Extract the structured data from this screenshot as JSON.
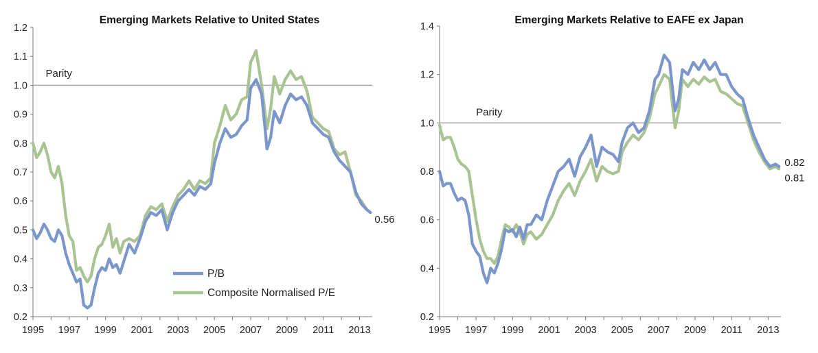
{
  "colors": {
    "pb": "#7b96cb",
    "pe": "#a9c393",
    "parity": "#a8a8a8",
    "axis": "#777777"
  },
  "legend": {
    "pb_label": "P/B",
    "pe_label": "Composite Normalised P/E"
  },
  "chart_data": [
    {
      "type": "line",
      "title": "Emerging Markets Relative to United States",
      "xlabel": "",
      "ylabel": "",
      "xlim": [
        1995,
        2013.7
      ],
      "ylim": [
        0.2,
        1.2
      ],
      "yticks": [
        "0.2",
        "0.3",
        "0.4",
        "0.5",
        "0.6",
        "0.7",
        "0.8",
        "0.9",
        "1.0",
        "1.1",
        "1.2"
      ],
      "xticks": [
        "1995",
        "1997",
        "1999",
        "2001",
        "2003",
        "2005",
        "2007",
        "2009",
        "2011",
        "2013"
      ],
      "reference_line": {
        "y": 1.0,
        "label": "Parity",
        "label_x": 1995.7,
        "label_y": 1.02
      },
      "legend_position": "bottom-center",
      "end_labels": [
        {
          "text": "0.56",
          "series": "P/B"
        }
      ],
      "series": [
        {
          "name": "P/B",
          "x": [
            1995.0,
            1995.2,
            1995.4,
            1995.6,
            1995.8,
            1996.0,
            1996.2,
            1996.4,
            1996.6,
            1996.8,
            1997.0,
            1997.2,
            1997.4,
            1997.6,
            1997.8,
            1998.0,
            1998.2,
            1998.4,
            1998.6,
            1998.8,
            1999.0,
            1999.2,
            1999.4,
            1999.6,
            1999.8,
            2000.0,
            2000.3,
            2000.6,
            2000.9,
            2001.2,
            2001.5,
            2001.8,
            2002.1,
            2002.4,
            2002.7,
            2003.0,
            2003.3,
            2003.6,
            2003.9,
            2004.2,
            2004.5,
            2004.8,
            2005.0,
            2005.3,
            2005.6,
            2005.9,
            2006.2,
            2006.5,
            2006.8,
            2007.0,
            2007.3,
            2007.6,
            2007.9,
            2008.1,
            2008.3,
            2008.6,
            2008.9,
            2009.2,
            2009.5,
            2009.8,
            2010.1,
            2010.4,
            2010.7,
            2011.0,
            2011.3,
            2011.6,
            2011.9,
            2012.2,
            2012.5,
            2012.8,
            2013.1,
            2013.4,
            2013.6
          ],
          "y": [
            0.5,
            0.47,
            0.49,
            0.52,
            0.5,
            0.47,
            0.46,
            0.5,
            0.48,
            0.42,
            0.38,
            0.35,
            0.32,
            0.33,
            0.24,
            0.23,
            0.24,
            0.3,
            0.35,
            0.37,
            0.36,
            0.4,
            0.37,
            0.38,
            0.35,
            0.39,
            0.45,
            0.42,
            0.47,
            0.53,
            0.56,
            0.55,
            0.57,
            0.5,
            0.56,
            0.6,
            0.62,
            0.64,
            0.62,
            0.65,
            0.64,
            0.66,
            0.73,
            0.8,
            0.85,
            0.82,
            0.83,
            0.86,
            0.88,
            0.99,
            1.02,
            0.97,
            0.78,
            0.82,
            0.91,
            0.87,
            0.93,
            0.97,
            0.95,
            0.96,
            0.93,
            0.87,
            0.85,
            0.83,
            0.82,
            0.77,
            0.74,
            0.72,
            0.7,
            0.63,
            0.59,
            0.57,
            0.56
          ]
        },
        {
          "name": "Composite Normalised P/E",
          "x": [
            1995.0,
            1995.2,
            1995.4,
            1995.6,
            1995.8,
            1996.0,
            1996.2,
            1996.4,
            1996.6,
            1996.8,
            1997.0,
            1997.2,
            1997.4,
            1997.6,
            1997.8,
            1998.0,
            1998.2,
            1998.4,
            1998.6,
            1998.8,
            1999.0,
            1999.2,
            1999.4,
            1999.6,
            1999.8,
            2000.0,
            2000.3,
            2000.6,
            2000.9,
            2001.2,
            2001.5,
            2001.8,
            2002.1,
            2002.4,
            2002.7,
            2003.0,
            2003.3,
            2003.6,
            2003.9,
            2004.2,
            2004.5,
            2004.8,
            2005.0,
            2005.3,
            2005.6,
            2005.9,
            2006.2,
            2006.5,
            2006.8,
            2007.0,
            2007.3,
            2007.6,
            2007.9,
            2008.1,
            2008.3,
            2008.6,
            2008.9,
            2009.2,
            2009.5,
            2009.8,
            2010.1,
            2010.4,
            2010.7,
            2011.0,
            2011.3,
            2011.6,
            2011.9,
            2012.2,
            2012.5,
            2012.8,
            2013.1,
            2013.4,
            2013.6
          ],
          "y": [
            0.8,
            0.75,
            0.77,
            0.8,
            0.76,
            0.7,
            0.68,
            0.72,
            0.66,
            0.55,
            0.48,
            0.46,
            0.36,
            0.37,
            0.34,
            0.32,
            0.34,
            0.4,
            0.44,
            0.45,
            0.48,
            0.52,
            0.44,
            0.47,
            0.42,
            0.46,
            0.47,
            0.46,
            0.48,
            0.55,
            0.58,
            0.57,
            0.59,
            0.53,
            0.58,
            0.62,
            0.64,
            0.67,
            0.64,
            0.67,
            0.66,
            0.68,
            0.8,
            0.86,
            0.93,
            0.88,
            0.9,
            0.95,
            0.96,
            1.08,
            1.12,
            1.0,
            0.85,
            0.92,
            1.03,
            0.97,
            1.02,
            1.05,
            1.02,
            1.03,
            0.98,
            0.89,
            0.87,
            0.85,
            0.84,
            0.78,
            0.76,
            0.77,
            0.7,
            0.62,
            0.6,
            0.57,
            0.56
          ]
        }
      ]
    },
    {
      "type": "line",
      "title": "Emerging Markets Relative to EAFE ex Japan",
      "xlabel": "",
      "ylabel": "",
      "xlim": [
        1995,
        2013.7
      ],
      "ylim": [
        0.2,
        1.4
      ],
      "yticks": [
        "0.2",
        "0.4",
        "0.6",
        "0.8",
        "1.0",
        "1.2",
        "1.4"
      ],
      "xticks": [
        "1995",
        "1997",
        "1999",
        "2001",
        "2003",
        "2005",
        "2007",
        "2009",
        "2011",
        "2013"
      ],
      "reference_line": {
        "y": 1.0,
        "label": "Parity",
        "label_x": 1997.0,
        "label_y": 1.02
      },
      "legend_position": "none",
      "end_labels": [
        {
          "text": "0.82",
          "series": "P/B"
        },
        {
          "text": "0.81",
          "series": "Composite Normalised P/E"
        }
      ],
      "series": [
        {
          "name": "P/B",
          "x": [
            1995.0,
            1995.2,
            1995.4,
            1995.6,
            1995.8,
            1996.0,
            1996.2,
            1996.4,
            1996.6,
            1996.8,
            1997.0,
            1997.2,
            1997.4,
            1997.6,
            1997.8,
            1998.0,
            1998.2,
            1998.4,
            1998.6,
            1998.8,
            1999.0,
            1999.2,
            1999.4,
            1999.6,
            1999.8,
            2000.0,
            2000.3,
            2000.6,
            2000.9,
            2001.2,
            2001.5,
            2001.8,
            2002.1,
            2002.4,
            2002.7,
            2003.0,
            2003.3,
            2003.6,
            2003.9,
            2004.2,
            2004.5,
            2004.8,
            2005.0,
            2005.3,
            2005.6,
            2005.9,
            2006.2,
            2006.5,
            2006.8,
            2007.0,
            2007.3,
            2007.6,
            2007.9,
            2008.1,
            2008.3,
            2008.6,
            2008.9,
            2009.2,
            2009.5,
            2009.8,
            2010.1,
            2010.4,
            2010.7,
            2011.0,
            2011.3,
            2011.6,
            2011.9,
            2012.2,
            2012.5,
            2012.8,
            2013.1,
            2013.4,
            2013.6
          ],
          "y": [
            0.8,
            0.74,
            0.75,
            0.75,
            0.71,
            0.68,
            0.69,
            0.68,
            0.62,
            0.5,
            0.47,
            0.45,
            0.38,
            0.34,
            0.4,
            0.38,
            0.42,
            0.48,
            0.56,
            0.55,
            0.56,
            0.53,
            0.57,
            0.52,
            0.58,
            0.58,
            0.62,
            0.6,
            0.68,
            0.74,
            0.8,
            0.82,
            0.85,
            0.78,
            0.86,
            0.9,
            0.95,
            0.82,
            0.9,
            0.88,
            0.87,
            0.84,
            0.92,
            0.98,
            1.0,
            0.96,
            0.98,
            1.05,
            1.18,
            1.2,
            1.28,
            1.25,
            1.05,
            1.1,
            1.22,
            1.2,
            1.25,
            1.22,
            1.26,
            1.22,
            1.25,
            1.2,
            1.2,
            1.15,
            1.12,
            1.1,
            1.02,
            0.95,
            0.9,
            0.85,
            0.82,
            0.83,
            0.82
          ]
        },
        {
          "name": "Composite Normalised P/E",
          "x": [
            1995.0,
            1995.2,
            1995.4,
            1995.6,
            1995.8,
            1996.0,
            1996.2,
            1996.4,
            1996.6,
            1996.8,
            1997.0,
            1997.2,
            1997.4,
            1997.6,
            1997.8,
            1998.0,
            1998.2,
            1998.4,
            1998.6,
            1998.8,
            1999.0,
            1999.2,
            1999.4,
            1999.6,
            1999.8,
            2000.0,
            2000.3,
            2000.6,
            2000.9,
            2001.2,
            2001.5,
            2001.8,
            2002.1,
            2002.4,
            2002.7,
            2003.0,
            2003.3,
            2003.6,
            2003.9,
            2004.2,
            2004.5,
            2004.8,
            2005.0,
            2005.3,
            2005.6,
            2005.9,
            2006.2,
            2006.5,
            2006.8,
            2007.0,
            2007.3,
            2007.6,
            2007.9,
            2008.1,
            2008.3,
            2008.6,
            2008.9,
            2009.2,
            2009.5,
            2009.8,
            2010.1,
            2010.4,
            2010.7,
            2011.0,
            2011.3,
            2011.6,
            2011.9,
            2012.2,
            2012.5,
            2012.8,
            2013.1,
            2013.4,
            2013.6
          ],
          "y": [
            0.99,
            0.93,
            0.94,
            0.94,
            0.9,
            0.85,
            0.83,
            0.82,
            0.8,
            0.7,
            0.6,
            0.52,
            0.47,
            0.44,
            0.44,
            0.42,
            0.45,
            0.52,
            0.58,
            0.57,
            0.55,
            0.58,
            0.55,
            0.5,
            0.54,
            0.55,
            0.52,
            0.54,
            0.58,
            0.62,
            0.68,
            0.72,
            0.75,
            0.7,
            0.76,
            0.8,
            0.85,
            0.76,
            0.82,
            0.8,
            0.79,
            0.8,
            0.88,
            0.92,
            0.95,
            0.93,
            0.96,
            1.02,
            1.12,
            1.15,
            1.2,
            1.18,
            0.98,
            1.05,
            1.18,
            1.15,
            1.18,
            1.16,
            1.19,
            1.17,
            1.18,
            1.13,
            1.12,
            1.1,
            1.08,
            1.07,
            1.0,
            0.93,
            0.88,
            0.84,
            0.81,
            0.82,
            0.81
          ]
        }
      ]
    }
  ]
}
